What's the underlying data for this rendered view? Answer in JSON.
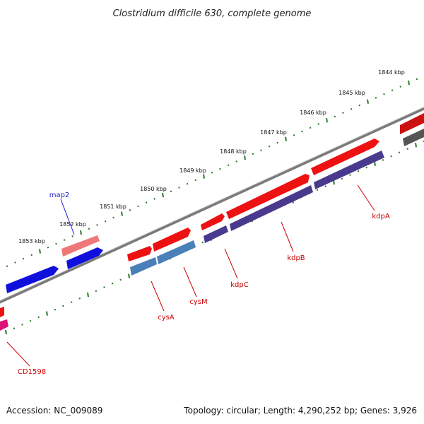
{
  "title": "Clostridium difficile 630, complete genome",
  "footer": {
    "accession": "Accession: NC_009089",
    "topology": "Topology: circular; Length: 4,290,252 bp; Genes: 3,926"
  },
  "ticks": [
    "1853 kbp",
    "1852 kbp",
    "1851 kbp",
    "1850 kbp",
    "1849 kbp",
    "1848 kbp",
    "1847 kbp",
    "1846 kbp",
    "1845 kbp",
    "1844 kbp"
  ],
  "genes": [
    {
      "name": "map2",
      "color": "#1a1acc"
    },
    {
      "name": "CD1598",
      "color": "#cc0000"
    },
    {
      "name": "cysA",
      "color": "#cc0000"
    },
    {
      "name": "cysM",
      "color": "#cc0000"
    },
    {
      "name": "kdpC",
      "color": "#cc0000"
    },
    {
      "name": "kdpB",
      "color": "#cc0000"
    },
    {
      "name": "kdpA",
      "color": "#cc0000"
    }
  ],
  "colors": {
    "backbone": "#808080",
    "tick": "#2a7a2a",
    "red_feature": "#ee1111",
    "pink_feature": "#ee7777",
    "blue_feature": "#1010dd",
    "steel_feature": "#4a7fb8",
    "purple_feature": "#4a3a8e",
    "gray_feature": "#555555",
    "magenta_feature": "#dd1177"
  }
}
